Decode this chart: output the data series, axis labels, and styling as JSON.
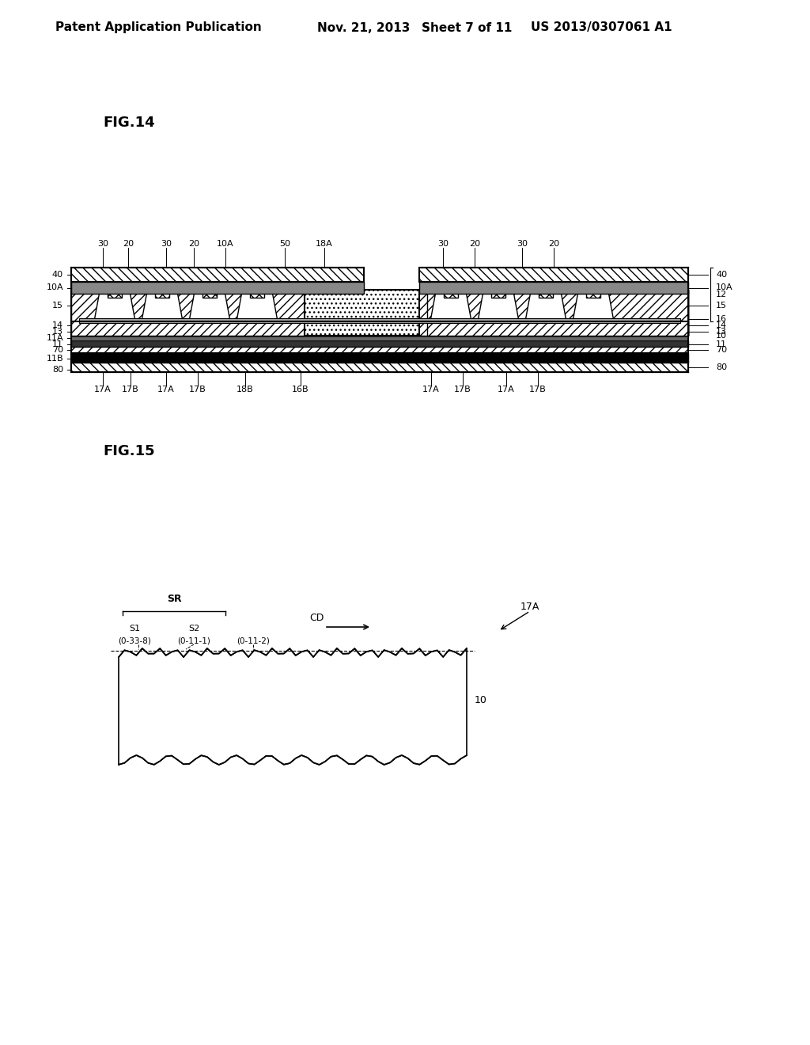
{
  "bg_color": "#ffffff",
  "header_text": "Patent Application Publication",
  "header_date": "Nov. 21, 2013",
  "header_sheet": "Sheet 7 of 11",
  "header_patent": "US 2013/0307061 A1",
  "fig14_title": "FIG.14",
  "fig15_title": "FIG.15"
}
